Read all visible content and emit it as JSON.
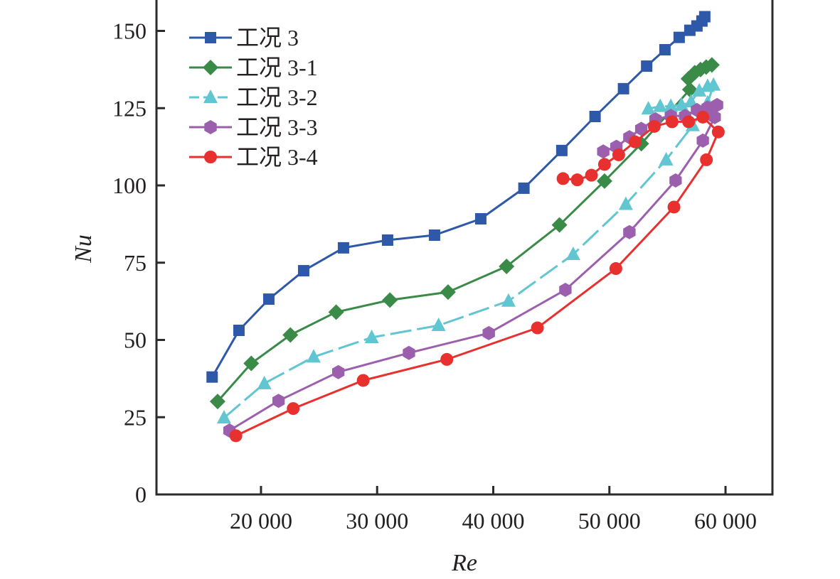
{
  "chart_data": {
    "type": "line",
    "title": "",
    "xlabel": "Re",
    "ylabel": "Nu",
    "xlim": [
      11000,
      64040
    ],
    "ylim": [
      0,
      160
    ],
    "x_ticks": [
      20000,
      30000,
      40000,
      50000,
      60000
    ],
    "x_tick_labels": [
      "20 000",
      "30 000",
      "40 000",
      "50 000",
      "60 000"
    ],
    "y_ticks": [
      0,
      25,
      50,
      75,
      100,
      125,
      150
    ],
    "y_tick_labels": [
      "0",
      "25",
      "50",
      "75",
      "100",
      "125",
      "150"
    ],
    "grid": false,
    "legend_position": "top-left",
    "series": [
      {
        "name": "工况 3",
        "color": "#2e58a8",
        "marker": "square",
        "dashed": false,
        "points": [
          [
            15793,
            38.0
          ],
          [
            18102,
            53.1
          ],
          [
            20674,
            63.2
          ],
          [
            23675,
            72.4
          ],
          [
            27104,
            79.8
          ],
          [
            30901,
            82.3
          ],
          [
            34943,
            83.9
          ],
          [
            38924,
            89.2
          ],
          [
            42641,
            99.1
          ],
          [
            45905,
            111.3
          ],
          [
            48765,
            122.3
          ],
          [
            51215,
            131.3
          ],
          [
            53210,
            138.6
          ],
          [
            54785,
            143.9
          ],
          [
            56009,
            147.9
          ],
          [
            56928,
            150.2
          ],
          [
            57540,
            151.6
          ],
          [
            57969,
            153.2
          ],
          [
            58213,
            154.6
          ]
        ]
      },
      {
        "name": "工况 3-1",
        "color": "#3a8a48",
        "marker": "diamond",
        "dashed": false,
        "points": [
          [
            16264,
            30.1
          ],
          [
            19161,
            42.4
          ],
          [
            22529,
            51.6
          ],
          [
            26473,
            59.0
          ],
          [
            31103,
            62.9
          ],
          [
            36106,
            65.5
          ],
          [
            41146,
            73.8
          ],
          [
            45702,
            87.2
          ],
          [
            49580,
            101.4
          ],
          [
            52746,
            113.5
          ],
          [
            56928,
            131.0
          ],
          [
            56805,
            134.5
          ],
          [
            57355,
            136.5
          ],
          [
            57846,
            137.5
          ],
          [
            58336,
            138.3
          ],
          [
            58826,
            139.0
          ]
        ]
      },
      {
        "name": "工况 3-2",
        "color": "#5fc6d2",
        "marker": "triangle",
        "dashed": true,
        "points": [
          [
            16816,
            24.8
          ],
          [
            20288,
            35.9
          ],
          [
            24532,
            44.5
          ],
          [
            29535,
            50.8
          ],
          [
            35292,
            54.7
          ],
          [
            41311,
            62.6
          ],
          [
            46884,
            77.7
          ],
          [
            51416,
            93.9
          ],
          [
            54888,
            108.3
          ],
          [
            57173,
            119.4
          ],
          [
            58458,
            126.7
          ],
          [
            58967,
            132.5
          ],
          [
            58458,
            132.1
          ],
          [
            57742,
            130.6
          ],
          [
            57031,
            127.1
          ],
          [
            56211,
            126.0
          ],
          [
            55292,
            125.6
          ],
          [
            54374,
            125.6
          ],
          [
            53357,
            124.8
          ]
        ]
      },
      {
        "name": "工况 3-3",
        "color": "#9b5fae",
        "marker": "hexagon",
        "dashed": false,
        "points": [
          [
            17287,
            20.7
          ],
          [
            21513,
            30.3
          ],
          [
            26657,
            39.6
          ],
          [
            32738,
            45.8
          ],
          [
            39615,
            52.2
          ],
          [
            46211,
            66.2
          ],
          [
            51723,
            84.9
          ],
          [
            55703,
            101.6
          ],
          [
            58049,
            114.5
          ],
          [
            59070,
            122.1
          ],
          [
            59272,
            126.0
          ],
          [
            58458,
            125.2
          ],
          [
            57540,
            124.4
          ],
          [
            56518,
            122.5
          ],
          [
            55292,
            122.5
          ],
          [
            53970,
            121.4
          ],
          [
            52746,
            118.3
          ],
          [
            51722,
            115.6
          ],
          [
            50602,
            112.5
          ],
          [
            49474,
            111.0
          ]
        ]
      },
      {
        "name": "工况 3-4",
        "color": "#e8302f",
        "marker": "circle",
        "dashed": false,
        "points": [
          [
            17838,
            19.0
          ],
          [
            22774,
            27.8
          ],
          [
            28800,
            36.9
          ],
          [
            36002,
            43.7
          ],
          [
            43804,
            53.9
          ],
          [
            50559,
            73.1
          ],
          [
            55562,
            93.0
          ],
          [
            58355,
            108.3
          ],
          [
            59377,
            117.3
          ],
          [
            58049,
            122.1
          ],
          [
            56824,
            120.6
          ],
          [
            55397,
            120.6
          ],
          [
            53866,
            119.1
          ],
          [
            52211,
            114.1
          ],
          [
            50804,
            109.9
          ],
          [
            49580,
            106.8
          ],
          [
            48458,
            103.3
          ],
          [
            47233,
            101.8
          ],
          [
            46009,
            102.2
          ]
        ]
      }
    ]
  }
}
